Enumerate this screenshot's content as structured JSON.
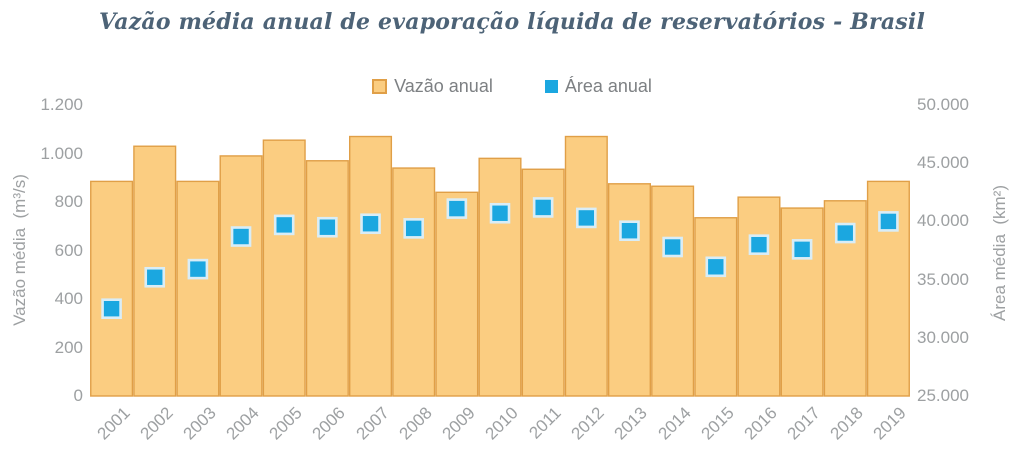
{
  "title": "Vazão média anual de evaporação líquida de reservatórios - Brasil",
  "legend": {
    "items": [
      {
        "label": "Vazão anual",
        "marker": "bar-swatch-icon"
      },
      {
        "label": "Área anual",
        "marker": "point-swatch-icon"
      }
    ]
  },
  "left_axis": {
    "label": "Vazão média  (m³/s)",
    "ticks": [
      "1.200",
      "1.000",
      "800",
      "600",
      "400",
      "200",
      "0"
    ],
    "tick_values": [
      1200,
      1000,
      800,
      600,
      400,
      200,
      0
    ]
  },
  "right_axis": {
    "label": "Área média  (km²)",
    "ticks": [
      "50.000",
      "45.000",
      "40.000",
      "35.000",
      "30.000",
      "25.000"
    ],
    "tick_values": [
      50000,
      45000,
      40000,
      35000,
      30000,
      25000
    ]
  },
  "colors": {
    "title_text": "#4d6377",
    "axis_text": "#9da0a2",
    "legend_text": "#7d8083",
    "bar_fill": "#fbcd81",
    "bar_border": "#e09f47",
    "point_fill": "#1ba7e0",
    "point_border": "#d9edf7"
  },
  "chart_data": {
    "type": "bar",
    "title": "Vazão média anual de evaporação líquida de reservatórios - Brasil",
    "categories": [
      "2001",
      "2002",
      "2003",
      "2004",
      "2005",
      "2006",
      "2007",
      "2008",
      "2009",
      "2010",
      "2011",
      "2012",
      "2013",
      "2014",
      "2015",
      "2016",
      "2017",
      "2018",
      "2019"
    ],
    "series": [
      {
        "name": "Vazão anual",
        "type": "bar",
        "axis": "left",
        "unit": "m³/s",
        "values": [
          885,
          1030,
          885,
          990,
          1055,
          970,
          1070,
          940,
          840,
          980,
          935,
          1070,
          875,
          865,
          735,
          820,
          775,
          805,
          885
        ]
      },
      {
        "name": "Área anual",
        "type": "scatter",
        "axis": "right",
        "unit": "km²",
        "values": [
          32500,
          35200,
          35900,
          38700,
          39700,
          39500,
          39800,
          39400,
          41100,
          40700,
          41200,
          40300,
          39200,
          37800,
          36100,
          38000,
          37600,
          39000,
          40000
        ]
      }
    ],
    "ylim_left": [
      0,
      1200
    ],
    "ylim_right": [
      25000,
      50000
    ],
    "grid": false,
    "legend_position": "top"
  }
}
